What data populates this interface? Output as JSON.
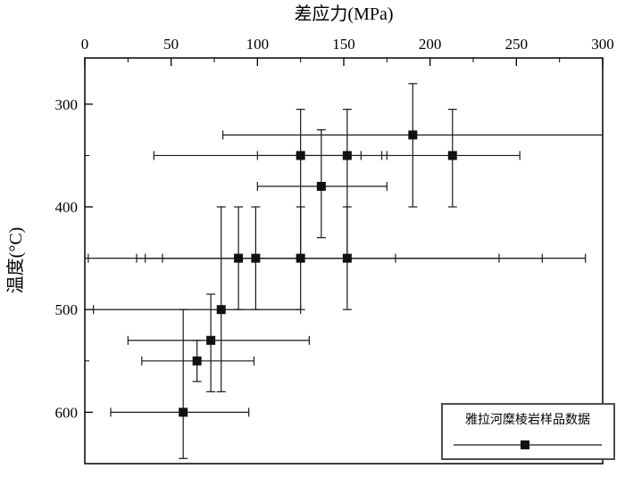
{
  "title": "差应力(MPa)",
  "y_label": "温度(°C)",
  "legend": {
    "label": "雅拉河糜棱岩样品数据"
  },
  "colors": {
    "marker": "#111111",
    "errorbar": "#1a1a1a",
    "frame": "#000000",
    "legend_border": "#4d4d4d",
    "background": "#ffffff"
  },
  "chart_data": {
    "type": "scatter",
    "title": "差应力(MPa)",
    "xlabel": "差应力(MPa)",
    "ylabel": "温度(°C)",
    "x_axis": {
      "position": "top",
      "min": 0,
      "max": 300,
      "major_ticks": [
        0,
        50,
        100,
        150,
        200,
        250,
        300
      ],
      "minor_ticks": [
        25,
        75,
        125,
        175,
        225,
        275
      ]
    },
    "y_axis": {
      "position": "left",
      "inverted": true,
      "min": 255,
      "max": 650,
      "major_ticks": [
        300,
        400,
        500,
        600
      ],
      "minor_ticks": [
        350,
        450,
        550
      ]
    },
    "grid": false,
    "legend_position": "bottom-right",
    "series_name": "雅拉河糜棱岩样品数据",
    "points": [
      {
        "stress": 190,
        "temp": 330,
        "stress_range": [
          80,
          300
        ],
        "temp_range": [
          280,
          400
        ]
      },
      {
        "stress": 125,
        "temp": 350,
        "stress_range": [
          40,
          160
        ],
        "temp_range": [
          305,
          450
        ]
      },
      {
        "stress": 152,
        "temp": 350,
        "stress_range": [
          100,
          175
        ],
        "temp_range": [
          305,
          450
        ]
      },
      {
        "stress": 213,
        "temp": 350,
        "stress_range": [
          172,
          252
        ],
        "temp_range": [
          305,
          400
        ]
      },
      {
        "stress": 137,
        "temp": 380,
        "stress_range": [
          100,
          175
        ],
        "temp_range": [
          325,
          430
        ]
      },
      {
        "stress": 89,
        "temp": 450,
        "stress_range": [
          30,
          180
        ],
        "temp_range": [
          400,
          500
        ]
      },
      {
        "stress": 99,
        "temp": 450,
        "stress_range": [
          35,
          240
        ],
        "temp_range": [
          400,
          500
        ]
      },
      {
        "stress": 125,
        "temp": 450,
        "stress_range": [
          2,
          265
        ],
        "temp_range": [
          400,
          500
        ]
      },
      {
        "stress": 152,
        "temp": 450,
        "stress_range": [
          45,
          290
        ],
        "temp_range": [
          400,
          500
        ]
      },
      {
        "stress": 79,
        "temp": 500,
        "stress_range": [
          5,
          125
        ],
        "temp_range": [
          400,
          580
        ]
      },
      {
        "stress": 73,
        "temp": 530,
        "stress_range": [
          25,
          130
        ],
        "temp_range": [
          485,
          580
        ]
      },
      {
        "stress": 65,
        "temp": 550,
        "stress_range": [
          33,
          98
        ],
        "temp_range": [
          530,
          570
        ]
      },
      {
        "stress": 57,
        "temp": 600,
        "stress_range": [
          15,
          95
        ],
        "temp_range": [
          500,
          645
        ]
      }
    ]
  }
}
